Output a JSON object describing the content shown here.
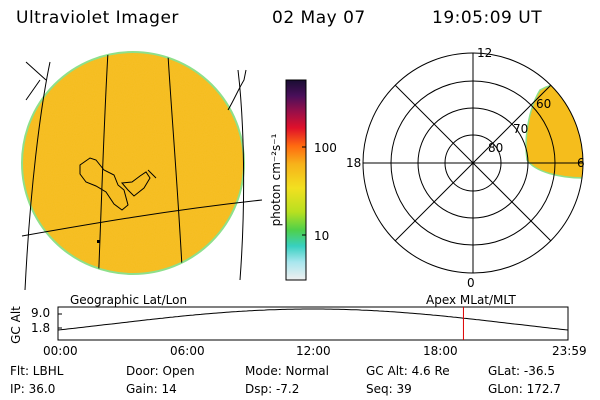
{
  "header": {
    "title": "Ultraviolet Imager",
    "date": "02 May 07",
    "time": "19:05:09 UT"
  },
  "colorbar": {
    "unit_label": "photon cm⁻²s⁻¹",
    "tick_100": "100",
    "tick_10": "10"
  },
  "polar_plot": {
    "label_12": "12",
    "label_18": "18",
    "label_6": "6",
    "label_0": "0",
    "lat_60": "60",
    "lat_70": "70",
    "lat_80": "80"
  },
  "panel_labels": {
    "left": "Geographic Lat/Lon",
    "right": "Apex MLat/MLT"
  },
  "timeline": {
    "axis_label": "GC Alt",
    "y_top": "9.0",
    "y_bottom": "1.8",
    "times": [
      "00:00",
      "06:00",
      "12:00",
      "18:00",
      "23:59"
    ],
    "current_time_fraction": 0.795
  },
  "info": {
    "filter": "Flt: LBHL",
    "ip": "IP: 36.0",
    "door": "Door: Open",
    "gain": "Gain: 14",
    "mode": "Mode: Normal",
    "dsp": "Dsp:    -7.2",
    "gc_alt": "GC Alt: 4.6 Re",
    "seq": "Seq: 39",
    "glat": "GLat: -36.5",
    "glon": "GLon: 172.7"
  },
  "colors": {
    "disk_fill": "#f5bd1c",
    "disk_edge": "#8ee08a",
    "marker_line": "#dd0000"
  }
}
